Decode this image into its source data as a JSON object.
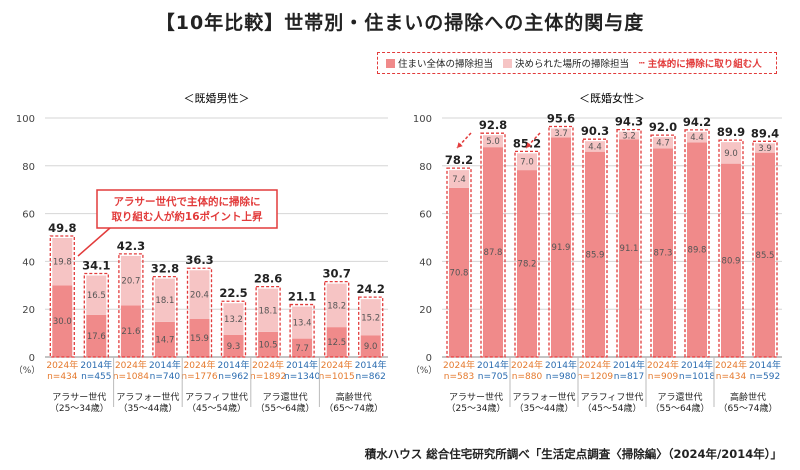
{
  "title": "【10年比較】世帯別・住まいの掃除への主体的関与度",
  "legend": {
    "main": "住まい全体の掃除担当",
    "decided": "決められた場所の掃除担当",
    "total": "主体的に掃除に取り組む人"
  },
  "colors": {
    "main": "#f08a8a",
    "decided": "#f6c4c4",
    "accent": "#e23b3b",
    "year2024": "#e57a2e",
    "year2014": "#2b6cb0"
  },
  "annotation": "アラサー世代で主体的に掃除に\n取り組む人が約16ポイント上昇",
  "yaxis": {
    "ticks": [
      0,
      20,
      40,
      60,
      80,
      100
    ],
    "unit": "（%）",
    "max": 100
  },
  "source": "積水ハウス 総合住宅研究所調べ「生活定点調査〈掃除編〉（2024年/2014年）」",
  "chart_data": [
    {
      "type": "bar",
      "title": "＜既婚男性＞",
      "groups": [
        "アラサー世代\n（25～34歳）",
        "アラフォー世代\n（35～44歳）",
        "アラフィフ世代\n（45～54歳）",
        "アラ還世代\n（55～64歳）",
        "高齢世代\n（65～74歳）"
      ],
      "bars": [
        {
          "year": "2024年",
          "n": "n=434",
          "main": 30.0,
          "decided": 19.8,
          "total": "49.8"
        },
        {
          "year": "2014年",
          "n": "n=455",
          "main": 17.6,
          "decided": 16.5,
          "total": "34.1"
        },
        {
          "year": "2024年",
          "n": "n=1084",
          "main": 21.6,
          "decided": 20.7,
          "total": "42.3"
        },
        {
          "year": "2014年",
          "n": "n=740",
          "main": 14.7,
          "decided": 18.1,
          "total": "32.8"
        },
        {
          "year": "2024年",
          "n": "n=1776",
          "main": 15.9,
          "decided": 20.4,
          "total": "36.3"
        },
        {
          "year": "2014年",
          "n": "n=962",
          "main": 9.3,
          "decided": 13.2,
          "total": "22.5"
        },
        {
          "year": "2024年",
          "n": "n=1892",
          "main": 10.5,
          "decided": 18.1,
          "total": "28.6"
        },
        {
          "year": "2014年",
          "n": "n=1340",
          "main": 7.7,
          "decided": 13.4,
          "total": "21.1"
        },
        {
          "year": "2024年",
          "n": "n=1015",
          "main": 12.5,
          "decided": 18.2,
          "total": "30.7"
        },
        {
          "year": "2014年",
          "n": "n=862",
          "main": 9.0,
          "decided": 15.2,
          "total": "24.2"
        }
      ]
    },
    {
      "type": "bar",
      "title": "＜既婚女性＞",
      "groups": [
        "アラサー世代\n（25～34歳）",
        "アラフォー世代\n（35～44歳）",
        "アラフィフ世代\n（45～54歳）",
        "アラ還世代\n（55～64歳）",
        "高齢世代\n（65～74歳）"
      ],
      "bars": [
        {
          "year": "2024年",
          "n": "n=583",
          "main": 70.8,
          "decided": 7.4,
          "total": "78.2"
        },
        {
          "year": "2014年",
          "n": "n=705",
          "main": 87.8,
          "decided": 5.0,
          "total": "92.8"
        },
        {
          "year": "2024年",
          "n": "n=880",
          "main": 78.2,
          "decided": 7.0,
          "total": "85.2"
        },
        {
          "year": "2014年",
          "n": "n=980",
          "main": 91.9,
          "decided": 3.7,
          "total": "95.6"
        },
        {
          "year": "2024年",
          "n": "n=1209",
          "main": 85.9,
          "decided": 4.4,
          "total": "90.3"
        },
        {
          "year": "2014年",
          "n": "n=817",
          "main": 91.1,
          "decided": 3.2,
          "total": "94.3"
        },
        {
          "year": "2024年",
          "n": "n=909",
          "main": 87.3,
          "decided": 4.7,
          "total": "92.0"
        },
        {
          "year": "2014年",
          "n": "n=1018",
          "main": 89.8,
          "decided": 4.4,
          "total": "94.2"
        },
        {
          "year": "2024年",
          "n": "n=434",
          "main": 80.9,
          "decided": 9.0,
          "total": "89.9"
        },
        {
          "year": "2014年",
          "n": "n=592",
          "main": 85.5,
          "decided": 3.9,
          "total": "89.4"
        }
      ]
    }
  ]
}
